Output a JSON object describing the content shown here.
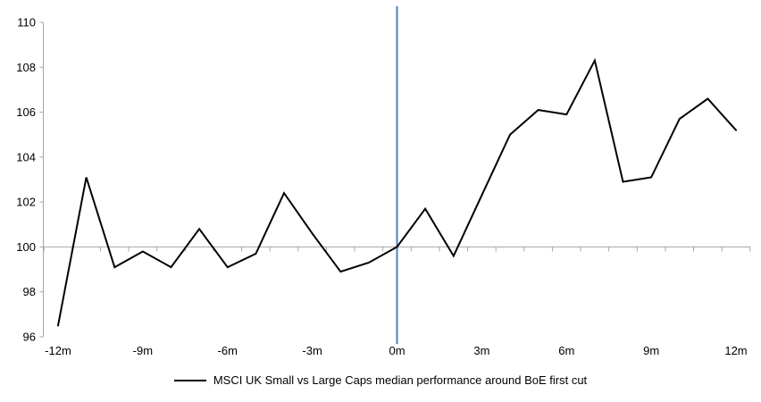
{
  "colors": {
    "series_line": "#000000",
    "axis_gray": "#a6a6a6",
    "event_line_blue": "#4f81bd",
    "text": "#000000",
    "background": "#ffffff"
  },
  "legend": {
    "label": "MSCI UK Small vs Large Caps median performance around BoE first cut"
  },
  "chart_data": {
    "type": "line",
    "title": "",
    "xlabel": "",
    "ylabel": "",
    "x": [
      -12,
      -11,
      -10,
      -9,
      -8,
      -7,
      -6,
      -5,
      -4,
      -3,
      -2,
      -1,
      0,
      1,
      2,
      3,
      4,
      5,
      6,
      7,
      8,
      9,
      10,
      11,
      12
    ],
    "series": [
      {
        "name": "MSCI UK Small vs Large Caps median performance around BoE first cut",
        "values": [
          96.5,
          103.1,
          99.1,
          99.8,
          99.1,
          100.8,
          99.1,
          99.7,
          102.4,
          100.6,
          98.9,
          99.3,
          100.0,
          101.7,
          99.6,
          102.3,
          105.0,
          106.1,
          105.9,
          108.3,
          102.9,
          103.1,
          105.7,
          106.6,
          105.2
        ],
        "color": "#000000"
      }
    ],
    "ylim": [
      96,
      110
    ],
    "y_ticks": [
      96,
      98,
      100,
      102,
      104,
      106,
      108,
      110
    ],
    "x_ticks": [
      {
        "month": -12,
        "label": "-12m"
      },
      {
        "month": -9,
        "label": "-9m"
      },
      {
        "month": -6,
        "label": "-6m"
      },
      {
        "month": -3,
        "label": "-3m"
      },
      {
        "month": 0,
        "label": "0m"
      },
      {
        "month": 3,
        "label": "3m"
      },
      {
        "month": 6,
        "label": "6m"
      },
      {
        "month": 9,
        "label": "9m"
      },
      {
        "month": 12,
        "label": "12m"
      }
    ],
    "baseline_value": 100,
    "event_marker_month": 0,
    "grid": "off",
    "legend_position": "bottom-center"
  }
}
